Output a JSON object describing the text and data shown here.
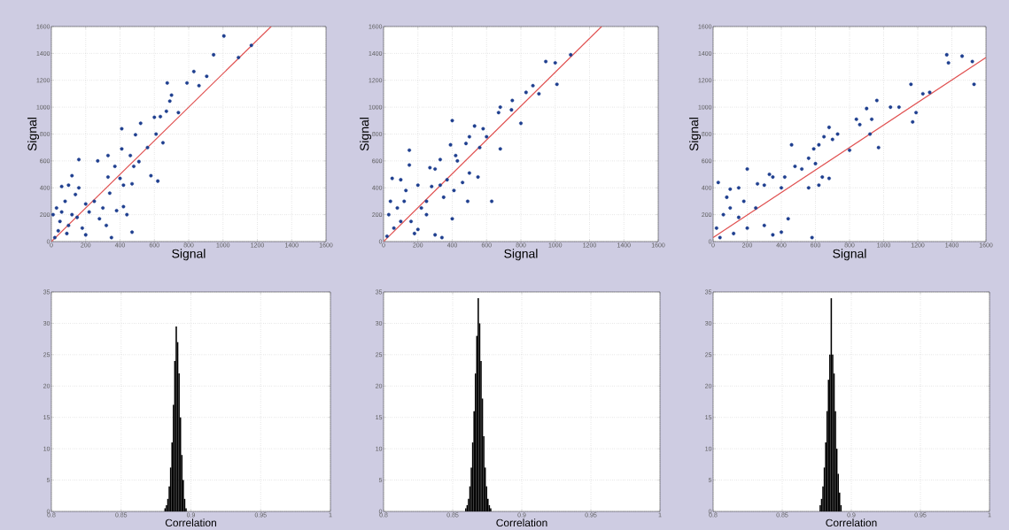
{
  "chart_data": [
    {
      "type": "scatter",
      "xlabel": "Signal",
      "ylabel": "Signal",
      "xlim": [
        0,
        1600
      ],
      "ylim": [
        0,
        1600
      ],
      "xticks": [
        0,
        200,
        400,
        600,
        800,
        1000,
        1200,
        1400,
        1600
      ],
      "yticks": [
        0,
        200,
        400,
        600,
        800,
        1000,
        1200,
        1400,
        1600
      ],
      "grid": true,
      "series": [
        {
          "type": "scatter",
          "color": "#1f3f8f",
          "x": [
            1005,
            945,
            1165,
            1090,
            830,
            905,
            790,
            675,
            860,
            700,
            690,
            670,
            740,
            600,
            635,
            520,
            410,
            610,
            490,
            650,
            560,
            410,
            460,
            330,
            160,
            270,
            510,
            480,
            370,
            580,
            620,
            120,
            400,
            330,
            420,
            470,
            340,
            250,
            160,
            300,
            420,
            380,
            280,
            440,
            320,
            470,
            350,
            200,
            100,
            60,
            140,
            80,
            30,
            200,
            120,
            50,
            180,
            90,
            20,
            150,
            220,
            40,
            100,
            10,
            60
          ],
          "values": [
            1530,
            1390,
            1460,
            1370,
            1265,
            1230,
            1180,
            1180,
            1160,
            1090,
            1045,
            970,
            960,
            925,
            930,
            880,
            840,
            800,
            795,
            735,
            700,
            690,
            640,
            640,
            610,
            600,
            595,
            560,
            560,
            490,
            450,
            490,
            470,
            480,
            420,
            430,
            360,
            300,
            400,
            250,
            260,
            230,
            170,
            200,
            120,
            70,
            30,
            50,
            420,
            410,
            350,
            300,
            250,
            280,
            200,
            150,
            100,
            60,
            30,
            180,
            220,
            80,
            120,
            200,
            220
          ]
        },
        {
          "type": "line",
          "color": "#e05050",
          "x": [
            0,
            1280
          ],
          "values": [
            0,
            1600
          ]
        }
      ]
    },
    {
      "type": "scatter",
      "xlabel": "Signal",
      "ylabel": "Signal",
      "xlim": [
        0,
        1600
      ],
      "ylim": [
        0,
        1600
      ],
      "xticks": [
        0,
        200,
        400,
        600,
        800,
        1000,
        1200,
        1400,
        1600
      ],
      "yticks": [
        0,
        200,
        400,
        600,
        800,
        1000,
        1200,
        1400,
        1600
      ],
      "grid": true,
      "series": [
        {
          "type": "scatter",
          "color": "#1f3f8f",
          "x": [
            1090,
            945,
            1000,
            1010,
            870,
            830,
            905,
            750,
            680,
            745,
            670,
            800,
            400,
            530,
            580,
            600,
            500,
            680,
            560,
            480,
            390,
            420,
            330,
            150,
            430,
            270,
            500,
            300,
            550,
            460,
            370,
            150,
            330,
            410,
            490,
            630,
            200,
            100,
            50,
            280,
            400,
            350,
            250,
            300,
            340,
            200,
            250,
            120,
            80,
            30,
            160,
            60,
            20,
            130,
            220,
            100,
            40,
            180
          ],
          "values": [
            1390,
            1340,
            1330,
            1170,
            1160,
            1110,
            1100,
            1050,
            1000,
            980,
            960,
            880,
            900,
            860,
            840,
            780,
            780,
            690,
            700,
            730,
            720,
            640,
            610,
            680,
            600,
            550,
            510,
            540,
            480,
            440,
            460,
            570,
            420,
            380,
            300,
            300,
            420,
            460,
            470,
            410,
            170,
            330,
            300,
            50,
            30,
            90,
            200,
            300,
            250,
            200,
            150,
            100,
            40,
            380,
            250,
            150,
            300,
            60
          ]
        },
        {
          "type": "line",
          "color": "#e05050",
          "x": [
            0,
            1270
          ],
          "values": [
            0,
            1600
          ]
        }
      ]
    },
    {
      "type": "scatter",
      "xlabel": "Signal",
      "ylabel": "Signal",
      "xlim": [
        0,
        1600
      ],
      "ylim": [
        0,
        1600
      ],
      "xticks": [
        0,
        200,
        400,
        600,
        800,
        1000,
        1200,
        1400,
        1600
      ],
      "yticks": [
        0,
        200,
        400,
        600,
        800,
        1000,
        1200,
        1400,
        1600
      ],
      "grid": true,
      "series": [
        {
          "type": "scatter",
          "color": "#1f3f8f",
          "x": [
            1370,
            1460,
            1380,
            1520,
            1530,
            1160,
            1230,
            1270,
            1190,
            1170,
            1040,
            1090,
            960,
            900,
            930,
            840,
            860,
            970,
            920,
            800,
            680,
            730,
            650,
            620,
            700,
            590,
            460,
            560,
            600,
            480,
            520,
            640,
            560,
            620,
            680,
            420,
            400,
            350,
            330,
            200,
            260,
            300,
            150,
            100,
            30,
            440,
            400,
            300,
            350,
            200,
            100,
            60,
            20,
            150,
            250,
            80,
            180,
            40,
            120,
            580
          ],
          "values": [
            1390,
            1380,
            1330,
            1340,
            1170,
            1170,
            1100,
            1110,
            960,
            890,
            1000,
            1000,
            1050,
            990,
            910,
            910,
            870,
            700,
            800,
            680,
            850,
            800,
            780,
            720,
            760,
            690,
            720,
            620,
            580,
            560,
            540,
            480,
            400,
            420,
            470,
            480,
            400,
            480,
            500,
            540,
            430,
            420,
            400,
            390,
            440,
            170,
            70,
            120,
            50,
            100,
            250,
            200,
            100,
            180,
            250,
            330,
            300,
            30,
            60,
            30
          ]
        },
        {
          "type": "line",
          "color": "#e05050",
          "x": [
            0,
            1600
          ],
          "values": [
            30,
            1370
          ]
        }
      ]
    },
    {
      "type": "histogram",
      "xlabel": "Correlation",
      "color": "#000000",
      "xlim": [
        0.8,
        1
      ],
      "ylim": [
        0,
        35
      ],
      "xticks": [
        0.8,
        0.85,
        0.9,
        0.95,
        1
      ],
      "yticks": [
        0,
        5,
        10,
        15,
        20,
        25,
        30,
        35
      ],
      "grid": true,
      "bins": [
        0.881,
        0.882,
        0.883,
        0.884,
        0.885,
        0.886,
        0.887,
        0.888,
        0.889,
        0.89,
        0.891,
        0.892,
        0.893,
        0.894,
        0.895,
        0.896,
        0.897
      ],
      "values": [
        0.5,
        1,
        2,
        4,
        7,
        11,
        17,
        24,
        29.5,
        27,
        22,
        15,
        9,
        5,
        2,
        0.5
      ]
    },
    {
      "type": "histogram",
      "xlabel": "Correlation",
      "color": "#000000",
      "xlim": [
        0.8,
        1
      ],
      "ylim": [
        0,
        35
      ],
      "xticks": [
        0.8,
        0.85,
        0.9,
        0.95,
        1
      ],
      "yticks": [
        0,
        5,
        10,
        15,
        20,
        25,
        30,
        35
      ],
      "grid": true,
      "bins": [
        0.859,
        0.86,
        0.861,
        0.862,
        0.863,
        0.864,
        0.865,
        0.866,
        0.867,
        0.868,
        0.869,
        0.87,
        0.871,
        0.872,
        0.873,
        0.874,
        0.875,
        0.876,
        0.877,
        0.878
      ],
      "values": [
        0.5,
        1,
        2,
        4,
        7,
        11,
        16,
        22,
        28,
        34,
        30,
        24,
        18,
        12,
        7,
        4,
        2,
        1,
        0.5
      ]
    },
    {
      "type": "histogram",
      "xlabel": "Correlation",
      "color": "#000000",
      "xlim": [
        0.8,
        1
      ],
      "ylim": [
        0,
        35
      ],
      "xticks": [
        0.8,
        0.85,
        0.9,
        0.95,
        1
      ],
      "yticks": [
        0,
        5,
        10,
        15,
        20,
        25,
        30,
        35
      ],
      "grid": true,
      "bins": [
        0.877,
        0.878,
        0.879,
        0.88,
        0.881,
        0.882,
        0.883,
        0.884,
        0.885,
        0.886,
        0.887,
        0.888,
        0.889,
        0.89,
        0.891,
        0.892,
        0.893
      ],
      "values": [
        1,
        2,
        4,
        7,
        11,
        16,
        21,
        25,
        34,
        25,
        22,
        16,
        10,
        6,
        3,
        1
      ]
    }
  ]
}
